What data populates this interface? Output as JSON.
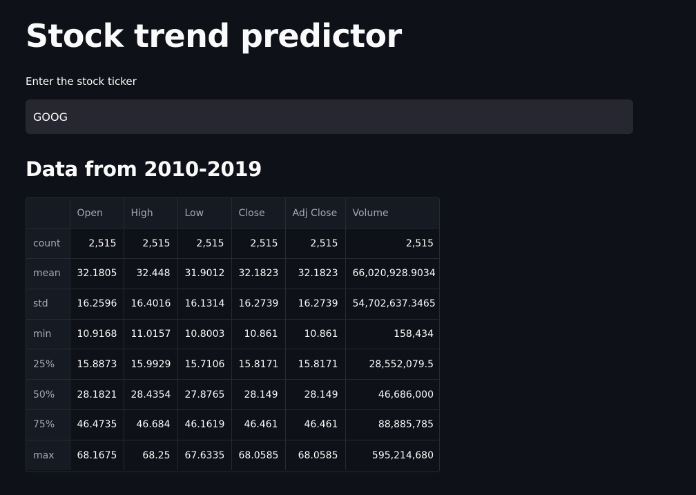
{
  "header": {
    "title": "Stock trend predictor"
  },
  "ticker_input": {
    "label": "Enter the stock ticker",
    "value": "GOOG"
  },
  "section": {
    "subheader": "Data from 2010-2019"
  },
  "table": {
    "columns": [
      "",
      "Open",
      "High",
      "Low",
      "Close",
      "Adj Close",
      "Volume"
    ],
    "rows": [
      {
        "stat": "count",
        "values": [
          "2,515",
          "2,515",
          "2,515",
          "2,515",
          "2,515",
          "2,515"
        ]
      },
      {
        "stat": "mean",
        "values": [
          "32.1805",
          "32.448",
          "31.9012",
          "32.1823",
          "32.1823",
          "66,020,928.9034"
        ]
      },
      {
        "stat": "std",
        "values": [
          "16.2596",
          "16.4016",
          "16.1314",
          "16.2739",
          "16.2739",
          "54,702,637.3465"
        ]
      },
      {
        "stat": "min",
        "values": [
          "10.9168",
          "11.0157",
          "10.8003",
          "10.861",
          "10.861",
          "158,434"
        ]
      },
      {
        "stat": "25%",
        "values": [
          "15.8873",
          "15.9929",
          "15.7106",
          "15.8171",
          "15.8171",
          "28,552,079.5"
        ]
      },
      {
        "stat": "50%",
        "values": [
          "28.1821",
          "28.4354",
          "27.8765",
          "28.149",
          "28.149",
          "46,686,000"
        ]
      },
      {
        "stat": "75%",
        "values": [
          "46.4735",
          "46.684",
          "46.1619",
          "46.461",
          "46.461",
          "88,885,785"
        ]
      },
      {
        "stat": "max",
        "values": [
          "68.1675",
          "68.25",
          "67.6335",
          "68.0585",
          "68.0585",
          "595,214,680"
        ]
      }
    ]
  },
  "colors": {
    "background": "#0e1117",
    "input_background": "#262730",
    "text": "#fafafa",
    "muted_text": "#a3a8b8",
    "header_cell": "#161a22",
    "grid_line": "#262a33"
  }
}
